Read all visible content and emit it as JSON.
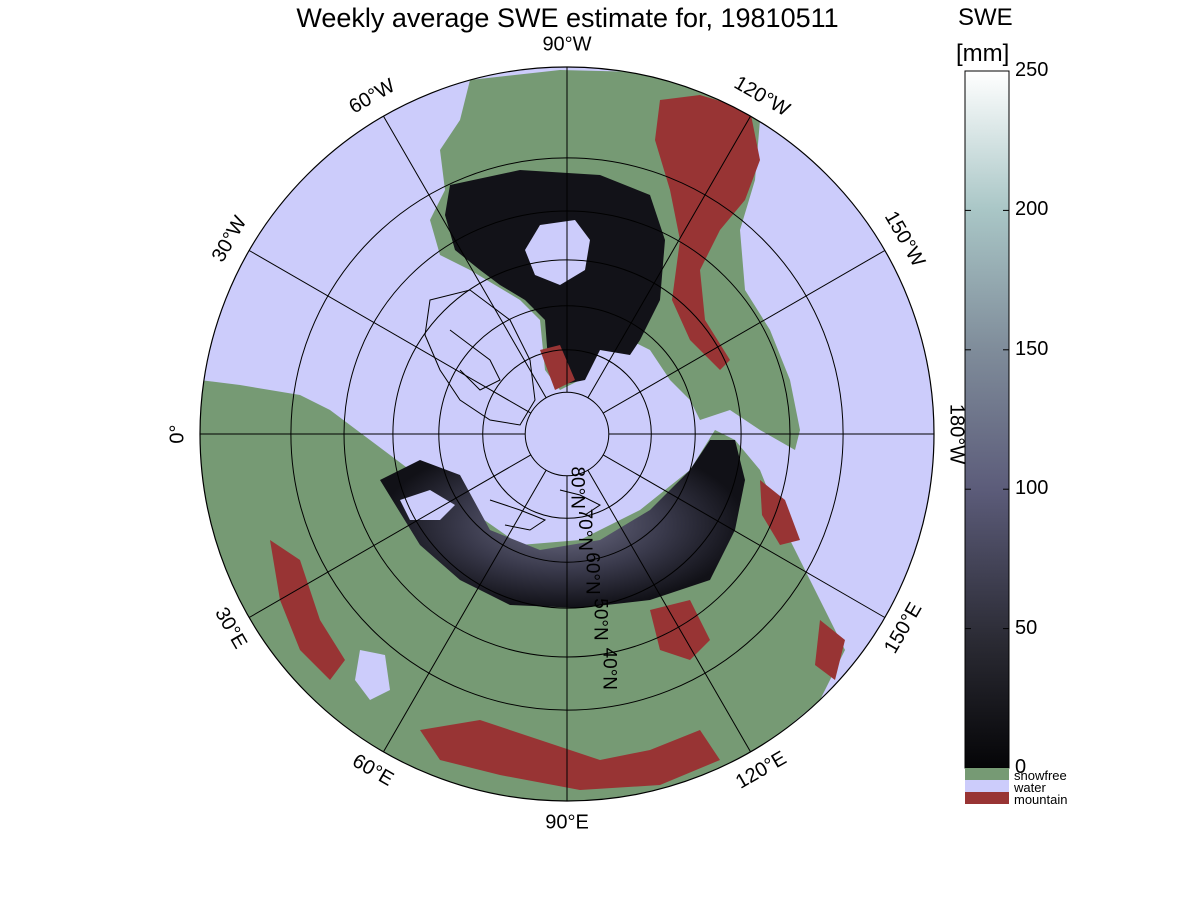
{
  "title": "Weekly average SWE estimate for, 19810511",
  "map": {
    "projection": "north polar stereographic",
    "longitude_labels": [
      {
        "text": "90°W",
        "lon": -90
      },
      {
        "text": "120°W",
        "lon": -120
      },
      {
        "text": "150°W",
        "lon": -150
      },
      {
        "text": "180°W",
        "lon": 180
      },
      {
        "text": "150°E",
        "lon": 150
      },
      {
        "text": "120°E",
        "lon": 120
      },
      {
        "text": "90°E",
        "lon": 90
      },
      {
        "text": "60°E",
        "lon": 60
      },
      {
        "text": "30°E",
        "lon": 30
      },
      {
        "text": "0°",
        "lon": 0
      },
      {
        "text": "30°W",
        "lon": -30
      },
      {
        "text": "60°W",
        "lon": -60
      }
    ],
    "latitude_labels": [
      {
        "text": "80°N",
        "lat": 80
      },
      {
        "text": "70°N",
        "lat": 70
      },
      {
        "text": "60°N",
        "lat": 60
      },
      {
        "text": "50°N",
        "lat": 50
      },
      {
        "text": "40°N",
        "lat": 40
      }
    ],
    "colors": {
      "snowfree": "#769a74",
      "water": "#ccccfb",
      "mountain": "#983434",
      "snow_low": "#0d0d12",
      "snow_high": "#ffffff"
    }
  },
  "colorbar": {
    "title_line1": "SWE",
    "title_line2": "[mm]",
    "range": [
      0,
      250
    ],
    "ticks": [
      "250",
      "200",
      "150",
      "100",
      "50",
      "0"
    ],
    "categories": [
      {
        "label": "snowfree",
        "color": "#769a74"
      },
      {
        "label": "water",
        "color": "#ccccfb"
      },
      {
        "label": "mountain",
        "color": "#983434"
      }
    ]
  }
}
